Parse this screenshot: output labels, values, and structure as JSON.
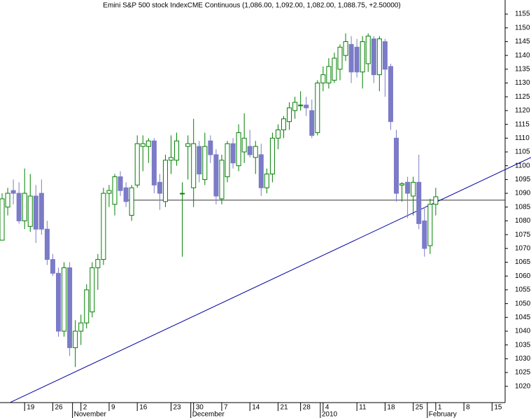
{
  "chart_data": {
    "type": "candlestick",
    "title": "Emini S&P 500 stock IndexCME Continuous (1,086.00, 1,092.00, 1,082.00, 1,088.75, +2.50000)",
    "categories": [
      null,
      null,
      null,
      null,
      "19",
      null,
      null,
      null,
      null,
      "26",
      null,
      null,
      null,
      null,
      "2",
      null,
      null,
      null,
      null,
      "9",
      null,
      null,
      null,
      null,
      "16",
      null,
      null,
      null,
      null,
      null,
      "23",
      null,
      null,
      null,
      "30",
      null,
      null,
      null,
      null,
      "7",
      null,
      null,
      null,
      null,
      "14",
      null,
      null,
      null,
      null,
      "21",
      null,
      null,
      null,
      "28",
      null,
      null,
      null,
      "4",
      null,
      null,
      null,
      null,
      null,
      "11",
      null,
      null,
      null,
      null,
      "18",
      null,
      null,
      null,
      null,
      "25",
      null,
      null,
      null,
      "1",
      null,
      null,
      null,
      null,
      "8",
      null,
      null,
      null,
      null,
      "15"
    ],
    "month_labels": [
      null,
      null,
      null,
      null,
      null,
      null,
      null,
      null,
      null,
      null,
      null,
      null,
      null,
      "November",
      null,
      null,
      null,
      null,
      null,
      null,
      null,
      null,
      null,
      null,
      null,
      null,
      null,
      null,
      null,
      null,
      null,
      null,
      null,
      null,
      "December",
      null,
      null,
      null,
      null,
      null,
      null,
      null,
      null,
      null,
      null,
      null,
      null,
      null,
      null,
      null,
      null,
      null,
      null,
      null,
      null,
      null,
      null,
      "2010",
      null,
      null,
      null,
      null,
      null,
      null,
      null,
      null,
      null,
      null,
      null,
      null,
      null,
      null,
      null,
      null,
      null,
      null,
      "February",
      null,
      null,
      null,
      null,
      null,
      null,
      null,
      null,
      null,
      null,
      null
    ],
    "open": [
      1073,
      1085,
      1091,
      1090,
      1080,
      1078,
      1089,
      1090,
      1077,
      1066,
      1061,
      1040,
      1063,
      1034,
      1040,
      1043,
      1047,
      1063,
      1066,
      1090,
      1086,
      1096,
      1092,
      1082,
      1093,
      1107,
      1107,
      1109,
      1094,
      1087,
      1102,
      1102,
      1090,
      1107,
      1092,
      1107,
      1095,
      1109,
      1104,
      1088,
      1096,
      1108,
      1100,
      1105,
      1107,
      1103,
      1104,
      1092,
      1097,
      1110,
      1113,
      1116,
      1120,
      1122,
      1122,
      1120,
      1112,
      1130,
      1130,
      1131,
      1135,
      1140,
      1144,
      1143,
      1134,
      1137,
      1146,
      1133,
      1145,
      1136,
      1110,
      1093,
      1094,
      1089,
      1094,
      1080,
      1071,
      1086,
      null,
      null,
      null,
      null,
      null,
      null,
      null,
      null,
      null,
      null
    ],
    "high": [
      1090,
      1092,
      1095,
      1094,
      1099,
      1097,
      1093,
      1095,
      1080,
      1068,
      1063,
      1065,
      1065,
      1044,
      1046,
      1057,
      1065,
      1068,
      1092,
      1093,
      1097,
      1098,
      1094,
      1093,
      1111,
      1111,
      1110,
      1110,
      1097,
      1104,
      1111,
      1112,
      1094,
      1111,
      1117,
      1109,
      1112,
      1111,
      1106,
      1104,
      1109,
      1110,
      1115,
      1119,
      1113,
      1109,
      1108,
      1099,
      1112,
      1115,
      1118,
      1123,
      1125,
      1127,
      1125,
      1124,
      1131,
      1136,
      1139,
      1141,
      1144,
      1148,
      1147,
      1146,
      1147,
      1148,
      1147,
      1147,
      1146,
      1137,
      1113,
      1094,
      1096,
      1096,
      1104,
      1085,
      1088,
      1092,
      null,
      null,
      null,
      null,
      null,
      null,
      null,
      null,
      null,
      null
    ],
    "low": [
      1073,
      1082,
      1086,
      1079,
      1077,
      1076,
      1072,
      1075,
      1064,
      1060,
      1038,
      1038,
      1031,
      1027,
      1035,
      1041,
      1045,
      1055,
      1064,
      1085,
      1082,
      1089,
      1085,
      1080,
      1092,
      1098,
      1101,
      1090,
      1084,
      1085,
      1097,
      1100,
      1067,
      1095,
      1085,
      1094,
      1093,
      1101,
      1086,
      1086,
      1094,
      1099,
      1098,
      1101,
      1103,
      1097,
      1089,
      1090,
      1094,
      1106,
      1110,
      1113,
      1117,
      1120,
      1118,
      1110,
      1111,
      1127,
      1128,
      1130,
      1131,
      1138,
      1130,
      1132,
      1128,
      1134,
      1130,
      1127,
      1125,
      1113,
      1087,
      1087,
      1081,
      1082,
      1077,
      1067,
      1068,
      1082,
      null,
      null,
      null,
      null,
      null,
      null,
      null,
      null,
      null,
      null
    ],
    "close": [
      1088,
      1090,
      1090,
      1080,
      1090,
      1089,
      1077,
      1077,
      1066,
      1061,
      1040,
      1063,
      1034,
      1040,
      1043,
      1055,
      1063,
      1066,
      1090,
      1091,
      1096,
      1091,
      1087,
      1092,
      1108,
      1108,
      1109,
      1093,
      1090,
      1102,
      1103,
      1109,
      1090,
      1108,
      1108,
      1097,
      1107,
      1104,
      1089,
      1102,
      1108,
      1101,
      1112,
      1110,
      1104,
      1107,
      1092,
      1097,
      1110,
      1113,
      1117,
      1121,
      1123,
      1122,
      1121,
      1111,
      1130,
      1133,
      1136,
      1139,
      1143,
      1145,
      1134,
      1134,
      1145,
      1147,
      1133,
      1146,
      1135,
      1116,
      1090,
      1093.5,
      1090,
      1094,
      1079,
      1070,
      1086,
      1088.75,
      null,
      null,
      null,
      null,
      null,
      null,
      null,
      null,
      null,
      null
    ],
    "up_color": "#008000",
    "down_color": "#7b7bc8",
    "horizontal_line": 1087.5,
    "trendline": [
      1014.2,
      1103
    ],
    "ylim": [
      1014.1,
      1160.1
    ],
    "yticks": [
      1020,
      1025,
      1030,
      1035,
      1040,
      1045,
      1050,
      1055,
      1060,
      1065,
      1070,
      1075,
      1080,
      1085,
      1090,
      1095,
      1100,
      1105,
      1110,
      1115,
      1120,
      1125,
      1130,
      1135,
      1140,
      1145,
      1150,
      1155
    ]
  }
}
